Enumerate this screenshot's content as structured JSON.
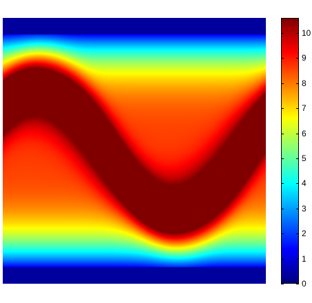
{
  "chart_data": {
    "type": "heatmap",
    "title": "",
    "xlabel": "",
    "ylabel": "",
    "colormap": "jet",
    "colorbar": {
      "min": 0,
      "max": 10.6,
      "ticks": [
        0,
        1,
        2,
        3,
        4,
        5,
        6,
        7,
        8,
        9,
        10
      ],
      "tick_labels": [
        "0",
        "1",
        "2",
        "3",
        "4",
        "5",
        "6",
        "7",
        "8",
        "9",
        "10"
      ]
    },
    "description_values": {
      "background_profile_top_to_bottom": [
        0.0,
        3.5,
        5.5,
        6.8,
        7.5,
        7.5,
        6.8,
        5.5,
        3.5,
        0.0
      ],
      "peak_value": 10.6,
      "wave_band_max": 9.5
    }
  }
}
